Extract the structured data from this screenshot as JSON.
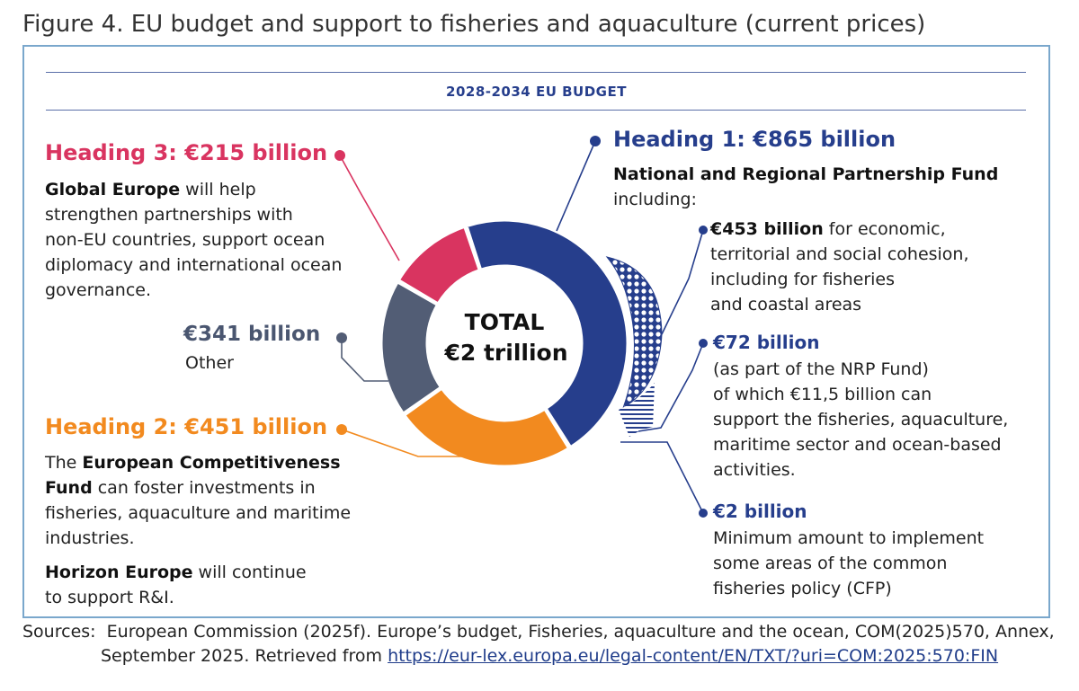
{
  "figure_title": "Figure 4. EU budget and support to fisheries and aquaculture (current prices)",
  "budget_heading": "2028-2034 EU BUDGET",
  "chart_data": {
    "type": "pie",
    "variant": "donut",
    "center_label": [
      "TOTAL",
      "€2 trillion"
    ],
    "categories": [
      "Heading 1",
      "Heading 2",
      "Other",
      "Heading 3"
    ],
    "values": [
      865,
      451,
      341,
      215
    ],
    "unit": "€ billion",
    "colors": [
      "#263e8c",
      "#f28a1f",
      "#525d75",
      "#d93460"
    ]
  },
  "heading3": {
    "title": "Heading 3: €215 billion",
    "bold": "Global Europe",
    "lines": [
      " will help",
      "strengthen partnerships with",
      "non-EU countries, support ocean",
      "diplomacy and international ocean",
      "governance."
    ]
  },
  "other": {
    "title": "€341 billion",
    "label": "Other"
  },
  "heading2": {
    "title": "Heading 2: €451 billion",
    "p1_pre": "The ",
    "p1_bold_a": "European Competitiveness",
    "p1_bold_b": "Fund",
    "p1_lines": [
      " can foster investments in",
      "fisheries, aquaculture and maritime",
      "industries."
    ],
    "p2_bold": "Horizon Europe",
    "p2_lines": [
      " will continue",
      "to support R&I."
    ]
  },
  "heading1": {
    "title": "Heading 1: €865 billion",
    "subtitle": "National and Regional Partnership Fund",
    "including": "including:",
    "item1_amount": "€453 billion",
    "item1_lines": [
      " for economic,",
      "territorial and social cohesion,",
      "including for fisheries",
      "and coastal areas"
    ],
    "item2_amount": "€72 billion",
    "item2_lines": [
      "(as part of the NRP Fund)",
      "of which €11,5 billion can",
      "support the fisheries, aquaculture,",
      "maritime sector and ocean-based",
      "activities."
    ],
    "item3_amount": "€2 billion",
    "item3_lines": [
      "Minimum amount to implement",
      "some areas of the common",
      "fisheries policy (CFP)"
    ]
  },
  "sources": {
    "label": "Sources:",
    "line1": "European Commission (2025f). Europe’s budget, Fisheries, aquaculture and the ocean, COM(2025)570, Annex,",
    "line2": "September 2025. Retrieved from ",
    "link": "https://eur-lex.europa.eu/legal-content/EN/TXT/?uri=COM:2025:570:FIN"
  }
}
